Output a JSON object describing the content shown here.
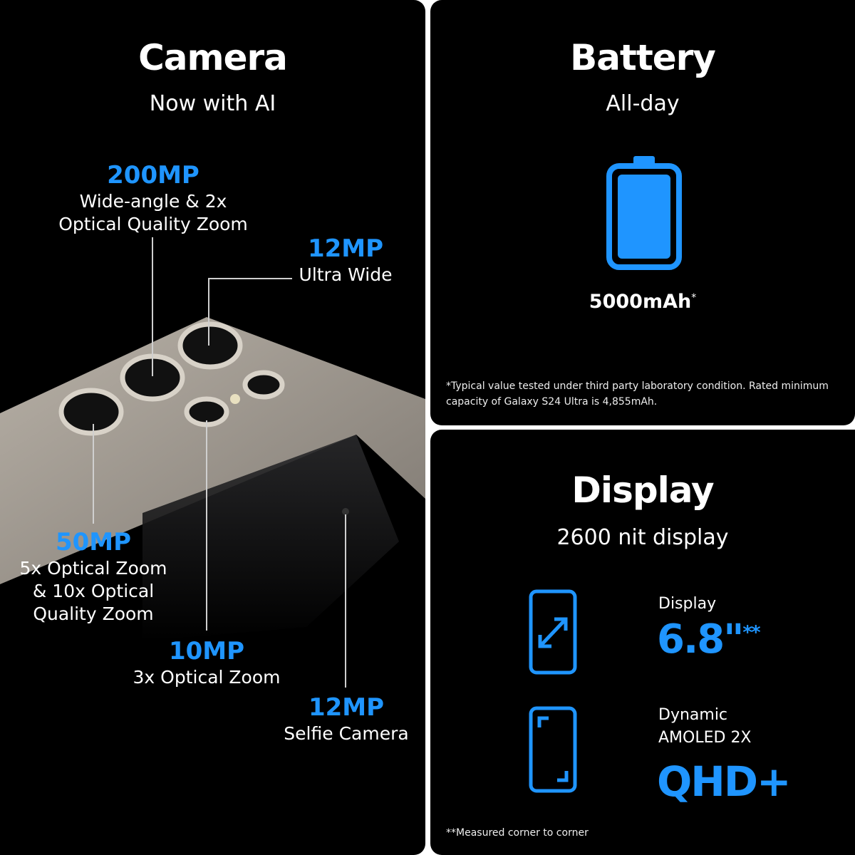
{
  "camera": {
    "title": "Camera",
    "subtitle": "Now with AI",
    "specs": [
      {
        "value": "200MP",
        "label1": "Wide-angle & 2x",
        "label2": "Optical Quality Zoom"
      },
      {
        "value": "12MP",
        "label1": "Ultra Wide"
      },
      {
        "value": "50MP",
        "label1": "5x Optical Zoom",
        "label2": "& 10x Optical",
        "label3": "Quality Zoom"
      },
      {
        "value": "10MP",
        "label1": "3x Optical Zoom"
      },
      {
        "value": "12MP",
        "label1": "Selfie Camera"
      }
    ]
  },
  "battery": {
    "title": "Battery",
    "subtitle": "All-day",
    "capacity": "5000mAh",
    "capacity_mark": "*",
    "footnote1": "*Typical value tested under third party laboratory condition. Rated minimum",
    "footnote2": "capacity of  Galaxy S24 Ultra is 4,855mAh."
  },
  "display": {
    "title": "Display",
    "subtitle": "2600 nit display",
    "size_label": "Display",
    "size_value": "6.8\"",
    "size_mark": "**",
    "type_label1": "Dynamic",
    "type_label2": "AMOLED 2X",
    "type_value": "QHD+",
    "footnote": "**Measured corner to corner"
  },
  "colors": {
    "accent": "#1f95ff",
    "background": "#000000"
  }
}
